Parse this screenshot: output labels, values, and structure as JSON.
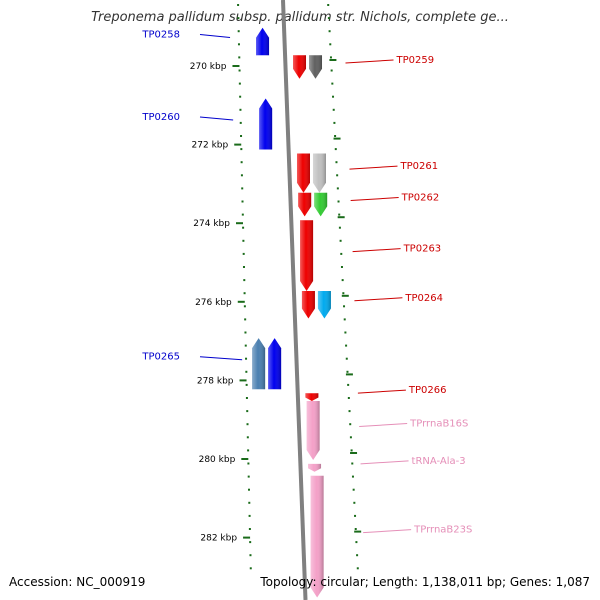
{
  "title": "Treponema pallidum subsp. pallidum str. Nichols, complete ge...",
  "footer": {
    "accession": "Accession: NC_000919",
    "summary": "Topology: circular; Length: 1,138,011 bp; Genes: 1,087"
  },
  "colors": {
    "backbone": "#808080",
    "tick": "#1a6b1a",
    "label_blue": "#0000cc",
    "label_red": "#cc0000",
    "label_pink": "#e58fb8"
  },
  "scale": {
    "unit": "kbp",
    "ticks": [
      {
        "kbp": 270,
        "label": "270 kbp"
      },
      {
        "kbp": 272,
        "label": "272 kbp"
      },
      {
        "kbp": 274,
        "label": "274 kbp"
      },
      {
        "kbp": 276,
        "label": "276 kbp"
      },
      {
        "kbp": 278,
        "label": "278 kbp"
      },
      {
        "kbp": 280,
        "label": "280 kbp"
      },
      {
        "kbp": 282,
        "label": "282 kbp"
      }
    ]
  },
  "features": [
    {
      "name": "TP0258",
      "strand": "-",
      "start": 269.0,
      "end": 269.7,
      "color": "#0000ee",
      "label_color": "#0000cc"
    },
    {
      "name": "TP0259",
      "strand": "+",
      "start": 269.7,
      "end": 270.3,
      "color": "#ee0000",
      "label_color": "#cc0000"
    },
    {
      "name": "",
      "strand": "+",
      "start": 269.7,
      "end": 270.3,
      "color": "#606060",
      "label_color": ""
    },
    {
      "name": "TP0260",
      "strand": "-",
      "start": 270.8,
      "end": 272.1,
      "color": "#0000ee",
      "label_color": "#0000cc"
    },
    {
      "name": "TP0261",
      "strand": "+",
      "start": 272.2,
      "end": 273.2,
      "color": "#ee0000",
      "label_color": "#cc0000"
    },
    {
      "name": "",
      "strand": "+",
      "start": 272.2,
      "end": 273.2,
      "color": "#c0c0c0",
      "label_color": ""
    },
    {
      "name": "TP0262",
      "strand": "+",
      "start": 273.2,
      "end": 273.8,
      "color": "#ee0000",
      "label_color": "#cc0000"
    },
    {
      "name": "",
      "strand": "+",
      "start": 273.2,
      "end": 273.8,
      "color": "#33cc33",
      "label_color": ""
    },
    {
      "name": "TP0263",
      "strand": "+",
      "start": 273.9,
      "end": 275.7,
      "color": "#ee0000",
      "label_color": "#cc0000"
    },
    {
      "name": "TP0264",
      "strand": "+",
      "start": 275.7,
      "end": 276.4,
      "color": "#ee0000",
      "label_color": "#cc0000"
    },
    {
      "name": "",
      "strand": "+",
      "start": 275.7,
      "end": 276.4,
      "color": "#00aaee",
      "label_color": ""
    },
    {
      "name": "TP0265",
      "strand": "-",
      "start": 276.9,
      "end": 278.2,
      "color": "#0000ee",
      "label_color": "#0000cc"
    },
    {
      "name": "",
      "strand": "-",
      "start": 276.9,
      "end": 278.2,
      "color": "#4a7fb0",
      "label_color": ""
    },
    {
      "name": "TP0266",
      "strand": "+",
      "start": 278.3,
      "end": 278.5,
      "color": "#ee0000",
      "label_color": "#cc0000"
    },
    {
      "name": "TPrrnaB16S",
      "strand": "+",
      "start": 278.5,
      "end": 280.0,
      "color": "#f4a0c8",
      "label_color": "#e58fb8"
    },
    {
      "name": "tRNA-Ala-3",
      "strand": "+",
      "start": 280.1,
      "end": 280.3,
      "color": "#f4a0c8",
      "label_color": "#e58fb8"
    },
    {
      "name": "TPrrnaB23S",
      "strand": "+",
      "start": 280.4,
      "end": 283.5,
      "color": "#f4a0c8",
      "label_color": "#e58fb8"
    }
  ]
}
